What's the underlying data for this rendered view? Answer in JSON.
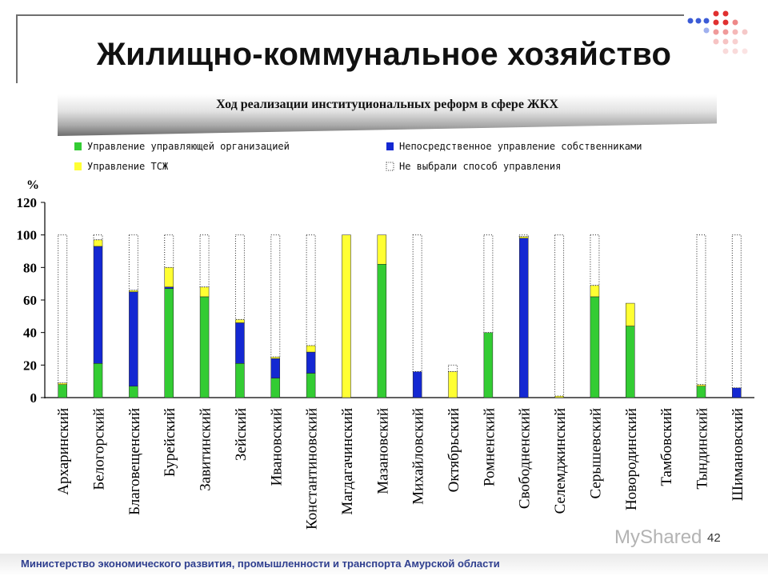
{
  "slide": {
    "title": "Жилищно-коммунальное хозяйство",
    "subtitle": "Ход реализации институциональных реформ в сфере ЖКХ",
    "footer": "Министерство экономического развития, промышленности и транспорта Амурской области",
    "page_number": "42",
    "watermark": "MyShared"
  },
  "chart_data": {
    "type": "bar",
    "stacked": true,
    "ylabel": "%",
    "ylim": [
      0,
      120
    ],
    "yticks": [
      0,
      20,
      40,
      60,
      80,
      100,
      120
    ],
    "legend_position": "top",
    "categories": [
      "Архаринский",
      "Белогорский",
      "Благовещенский",
      "Бурейский",
      "Завитинский",
      "Зейский",
      "Ивановский",
      "Константиновский",
      "Магдагачинский",
      "Мазановский",
      "Михайловский",
      "Октябрьский",
      "Ромненский",
      "Свободненский",
      "Селемджинский",
      "Серышевский",
      "Новородинский",
      "Тамбовский",
      "Тындинский",
      "Шимановский"
    ],
    "series": [
      {
        "name": "Управление управляющей организацией",
        "color": "#33cc33",
        "style": "solid",
        "values": [
          8,
          21,
          7,
          67,
          62,
          21,
          12,
          15,
          0,
          82,
          0,
          0,
          40,
          0,
          0,
          62,
          44,
          0,
          7,
          0
        ]
      },
      {
        "name": "Непосредственное управление собственниками",
        "color": "#1428d2",
        "style": "solid",
        "values": [
          0,
          72,
          58,
          1,
          0,
          25,
          12,
          13,
          0,
          0,
          16,
          0,
          0,
          98,
          0,
          0,
          0,
          0,
          0,
          6
        ]
      },
      {
        "name": "Управление ТСЖ",
        "color": "#ffff33",
        "style": "solid",
        "values": [
          1,
          4,
          1,
          12,
          6,
          2,
          1,
          4,
          100,
          18,
          0,
          16,
          0,
          1,
          1,
          7,
          14,
          0,
          1,
          0
        ]
      },
      {
        "name": "Не выбрали способ управления",
        "color": "#ffffff",
        "style": "dotted",
        "values": [
          91,
          3,
          34,
          20,
          32,
          52,
          75,
          68,
          0,
          0,
          84,
          4,
          60,
          1,
          99,
          31,
          0,
          0,
          92,
          94
        ]
      }
    ]
  }
}
